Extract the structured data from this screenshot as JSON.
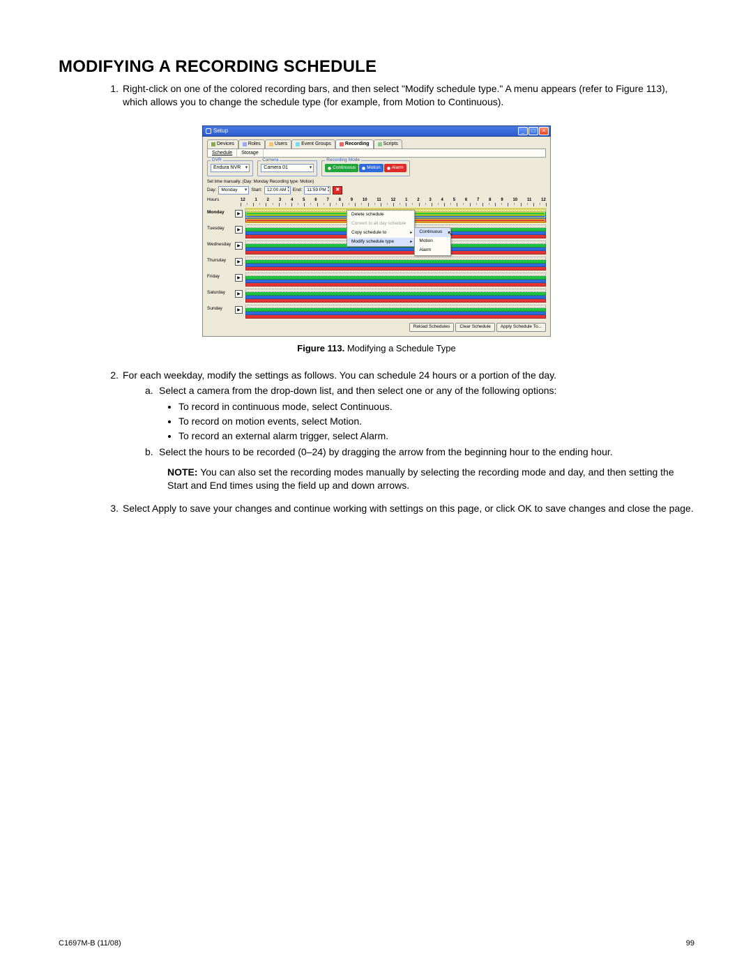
{
  "heading": "MODIFYING A RECORDING SCHEDULE",
  "step1": "Right-click on one of the colored recording bars, and then select \"Modify schedule type.\" A menu appears (refer to Figure 113), which allows you to change the schedule type (for example, from Motion to Continuous).",
  "caption_bold": "Figure 113.",
  "caption_rest": "  Modifying a Schedule Type",
  "step2_intro": "For each weekday, modify the settings as follows. You can schedule 24 hours or a portion of the day.",
  "step2a": "Select a camera from the drop-down list, and then select one or any of the following options:",
  "step2a_b1": "To record in continuous mode, select Continuous.",
  "step2a_b2": "To record on motion events, select Motion.",
  "step2a_b3": "To record an external alarm trigger, select Alarm.",
  "step2b": "Select the hours to be recorded (0–24) by dragging the arrow from the beginning hour to the ending hour.",
  "note_label": "NOTE:",
  "note_body": "  You can also set the recording modes manually by selecting the recording mode and day, and then setting the Start and End times using the field up and down arrows.",
  "step3": "Select Apply to save your changes and continue working with settings on this page, or click OK to save changes and close the page.",
  "doc_id": "C1697M-B (11/08)",
  "page_num": "99",
  "win": {
    "title": "Setup",
    "tabs": {
      "devices": "Devices",
      "roles": "Roles",
      "users": "Users",
      "event": "Event Groups",
      "recording": "Recording",
      "scripts": "Scripts"
    },
    "subtabs": {
      "schedule": "Schedule",
      "storage": "Storage"
    },
    "legend": {
      "dvr": "DVR",
      "camera": "Camera",
      "mode": "Recording Mode"
    },
    "dvr_value": "Endura NVR",
    "camera_value": "Camera 01",
    "mode_continuous": "Continuous",
    "mode_motion": "Motion",
    "mode_alarm": "Alarm",
    "manual_line": "Set time manually. (Day: Monday  Recording type: Motion)",
    "day_label": "Day:",
    "day_value": "Monday",
    "start_label": "Start:",
    "start_value": "12:00 AM",
    "end_label": "End:",
    "end_value": "11:59 PM",
    "hours_label": "Hours",
    "hour_nums": [
      "12",
      "1",
      "2",
      "3",
      "4",
      "5",
      "6",
      "7",
      "8",
      "9",
      "10",
      "11",
      "12",
      "1",
      "2",
      "3",
      "4",
      "5",
      "6",
      "7",
      "8",
      "9",
      "10",
      "11",
      "12"
    ],
    "days": [
      "Monday",
      "Tuesday",
      "Wednesday",
      "Thursday",
      "Friday",
      "Saturday",
      "Sunday"
    ],
    "ctx": {
      "delete": "Delete schedule",
      "convert": "Convert to all day schedule",
      "copy": "Copy schedule to",
      "modify": "Modify schedule type",
      "continuous": "Continuous",
      "motion": "Motion",
      "alarm": "Alarm"
    },
    "btn_reload": "Reload Schedules",
    "btn_clear": "Clear Schedule",
    "btn_apply": "Apply Schedule To...",
    "colors": {
      "continuous": "#1fc23f",
      "motion": "#2f6add",
      "alarm": "#e43333",
      "window_bg": "#ece9d8",
      "titlebar": "#2b5bcf"
    }
  }
}
